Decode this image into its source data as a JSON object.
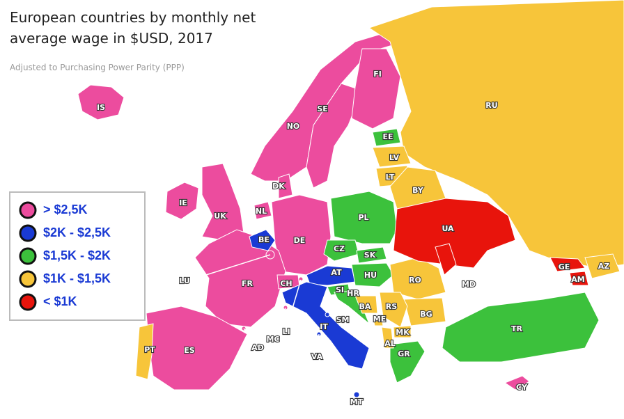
{
  "title_line1": "European countries by monthly net",
  "title_line2": "average wage in $USD, 2017",
  "subtitle": "Adjusted to Purchasing Power Parity (PPP)",
  "legend": [
    {
      "label": "> $2,5K",
      "color": "#ec4c9e",
      "countries": [
        "IS",
        "IE",
        "UK",
        "NO",
        "SE",
        "FI",
        "DK",
        "NL",
        "DE",
        "FR",
        "LU",
        "CH",
        "LI",
        "ES",
        "AD",
        "MC",
        "CY"
      ]
    },
    {
      "label": "$2K - $2,5K",
      "color": "#1a3ad4",
      "countries": [
        "BE",
        "AT",
        "IT",
        "SM",
        "VA",
        "MT"
      ]
    },
    {
      "label": "$1,5K - $2K",
      "color": "#3cc13c",
      "countries": [
        "EE",
        "PL",
        "CZ",
        "SK",
        "SI",
        "HR",
        "HU",
        "TR",
        "GR"
      ]
    },
    {
      "label": "$1K - $1,5K",
      "color": "#f7c53a",
      "countries": [
        "RU",
        "LV",
        "LT",
        "BY",
        "PT",
        "RO",
        "BG",
        "RS",
        "BA",
        "ME",
        "MK",
        "AL",
        "AZ"
      ]
    },
    {
      "label": "< $1K",
      "color": "#e8140c",
      "countries": [
        "UA",
        "MD",
        "GE",
        "AM"
      ]
    }
  ]
}
